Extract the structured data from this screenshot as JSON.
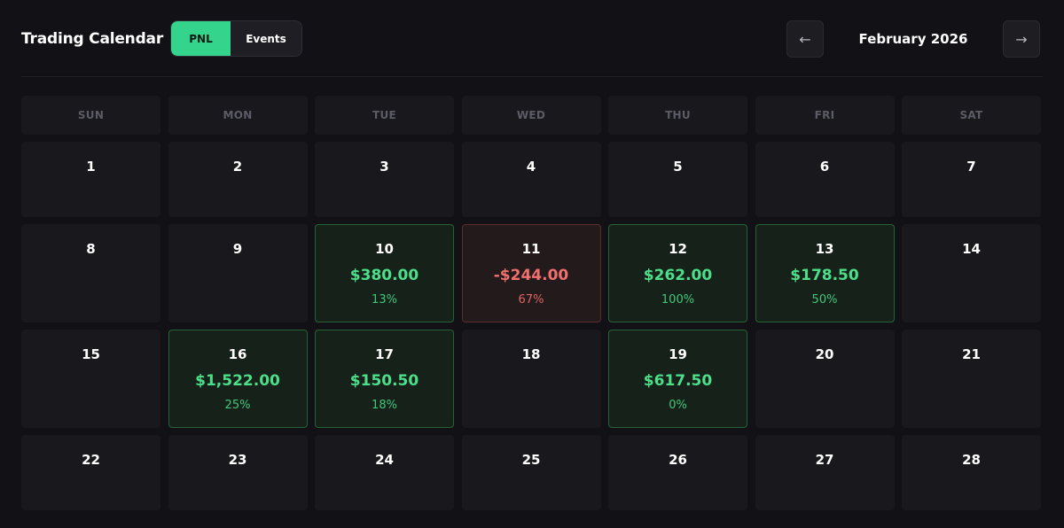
{
  "header": {
    "title": "Trading Calendar",
    "toggle": {
      "active_label": "PNL",
      "inactive_label": "Events"
    },
    "prev_icon": "←",
    "next_icon": "→",
    "month_label": "February 2026"
  },
  "weekdays": [
    "SUN",
    "MON",
    "TUE",
    "WED",
    "THU",
    "FRI",
    "SAT"
  ],
  "colors": {
    "background": "#111116",
    "cell": "#18181d",
    "accent_green": "#34d48d",
    "profit_text": "#4cdf8a",
    "loss_text": "#f0706e"
  },
  "days": [
    {
      "day": "1"
    },
    {
      "day": "2"
    },
    {
      "day": "3"
    },
    {
      "day": "4"
    },
    {
      "day": "5"
    },
    {
      "day": "6"
    },
    {
      "day": "7"
    },
    {
      "day": "8"
    },
    {
      "day": "9"
    },
    {
      "day": "10",
      "pnl": "$380.00",
      "pct": "13%",
      "status": "profit"
    },
    {
      "day": "11",
      "pnl": "-$244.00",
      "pct": "67%",
      "status": "loss"
    },
    {
      "day": "12",
      "pnl": "$262.00",
      "pct": "100%",
      "status": "profit"
    },
    {
      "day": "13",
      "pnl": "$178.50",
      "pct": "50%",
      "status": "profit"
    },
    {
      "day": "14"
    },
    {
      "day": "15"
    },
    {
      "day": "16",
      "pnl": "$1,522.00",
      "pct": "25%",
      "status": "profit"
    },
    {
      "day": "17",
      "pnl": "$150.50",
      "pct": "18%",
      "status": "profit"
    },
    {
      "day": "18"
    },
    {
      "day": "19",
      "pnl": "$617.50",
      "pct": "0%",
      "status": "profit"
    },
    {
      "day": "20"
    },
    {
      "day": "21"
    },
    {
      "day": "22"
    },
    {
      "day": "23"
    },
    {
      "day": "24"
    },
    {
      "day": "25"
    },
    {
      "day": "26"
    },
    {
      "day": "27"
    },
    {
      "day": "28"
    }
  ]
}
